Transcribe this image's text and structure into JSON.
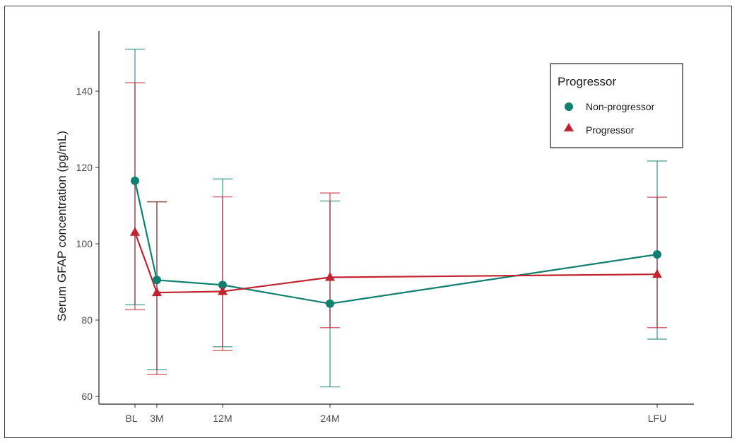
{
  "chart_data": {
    "type": "line",
    "title": "",
    "xlabel": "",
    "ylabel": "Serum GFAP concentration (pg/mL)",
    "x_categories": [
      "BL",
      "3M",
      "12M",
      "24M",
      "LFU"
    ],
    "x_positions_months": [
      0,
      3,
      12,
      24,
      60
    ],
    "yticks": [
      60,
      80,
      100,
      120,
      140
    ],
    "ylim": [
      58,
      155
    ],
    "grid": false,
    "legend": {
      "title": "Progressor",
      "placement": "top-right"
    },
    "series": [
      {
        "name": "Non-progressor",
        "color": "#0f7f72",
        "marker": "circle",
        "values": [
          116.5,
          90.5,
          89.2,
          84.3,
          97.2
        ],
        "error_low": [
          84,
          67,
          73,
          62.5,
          75
        ],
        "error_high": [
          151,
          111,
          117,
          111.2,
          121.7
        ]
      },
      {
        "name": "Progressor",
        "color": "#c0242e",
        "marker": "triangle",
        "values": [
          103,
          87.2,
          87.5,
          91.2,
          92
        ],
        "error_low": [
          82.7,
          65.7,
          72,
          78,
          78
        ],
        "error_high": [
          142.2,
          111,
          112.3,
          113.3,
          112.2
        ]
      }
    ]
  }
}
